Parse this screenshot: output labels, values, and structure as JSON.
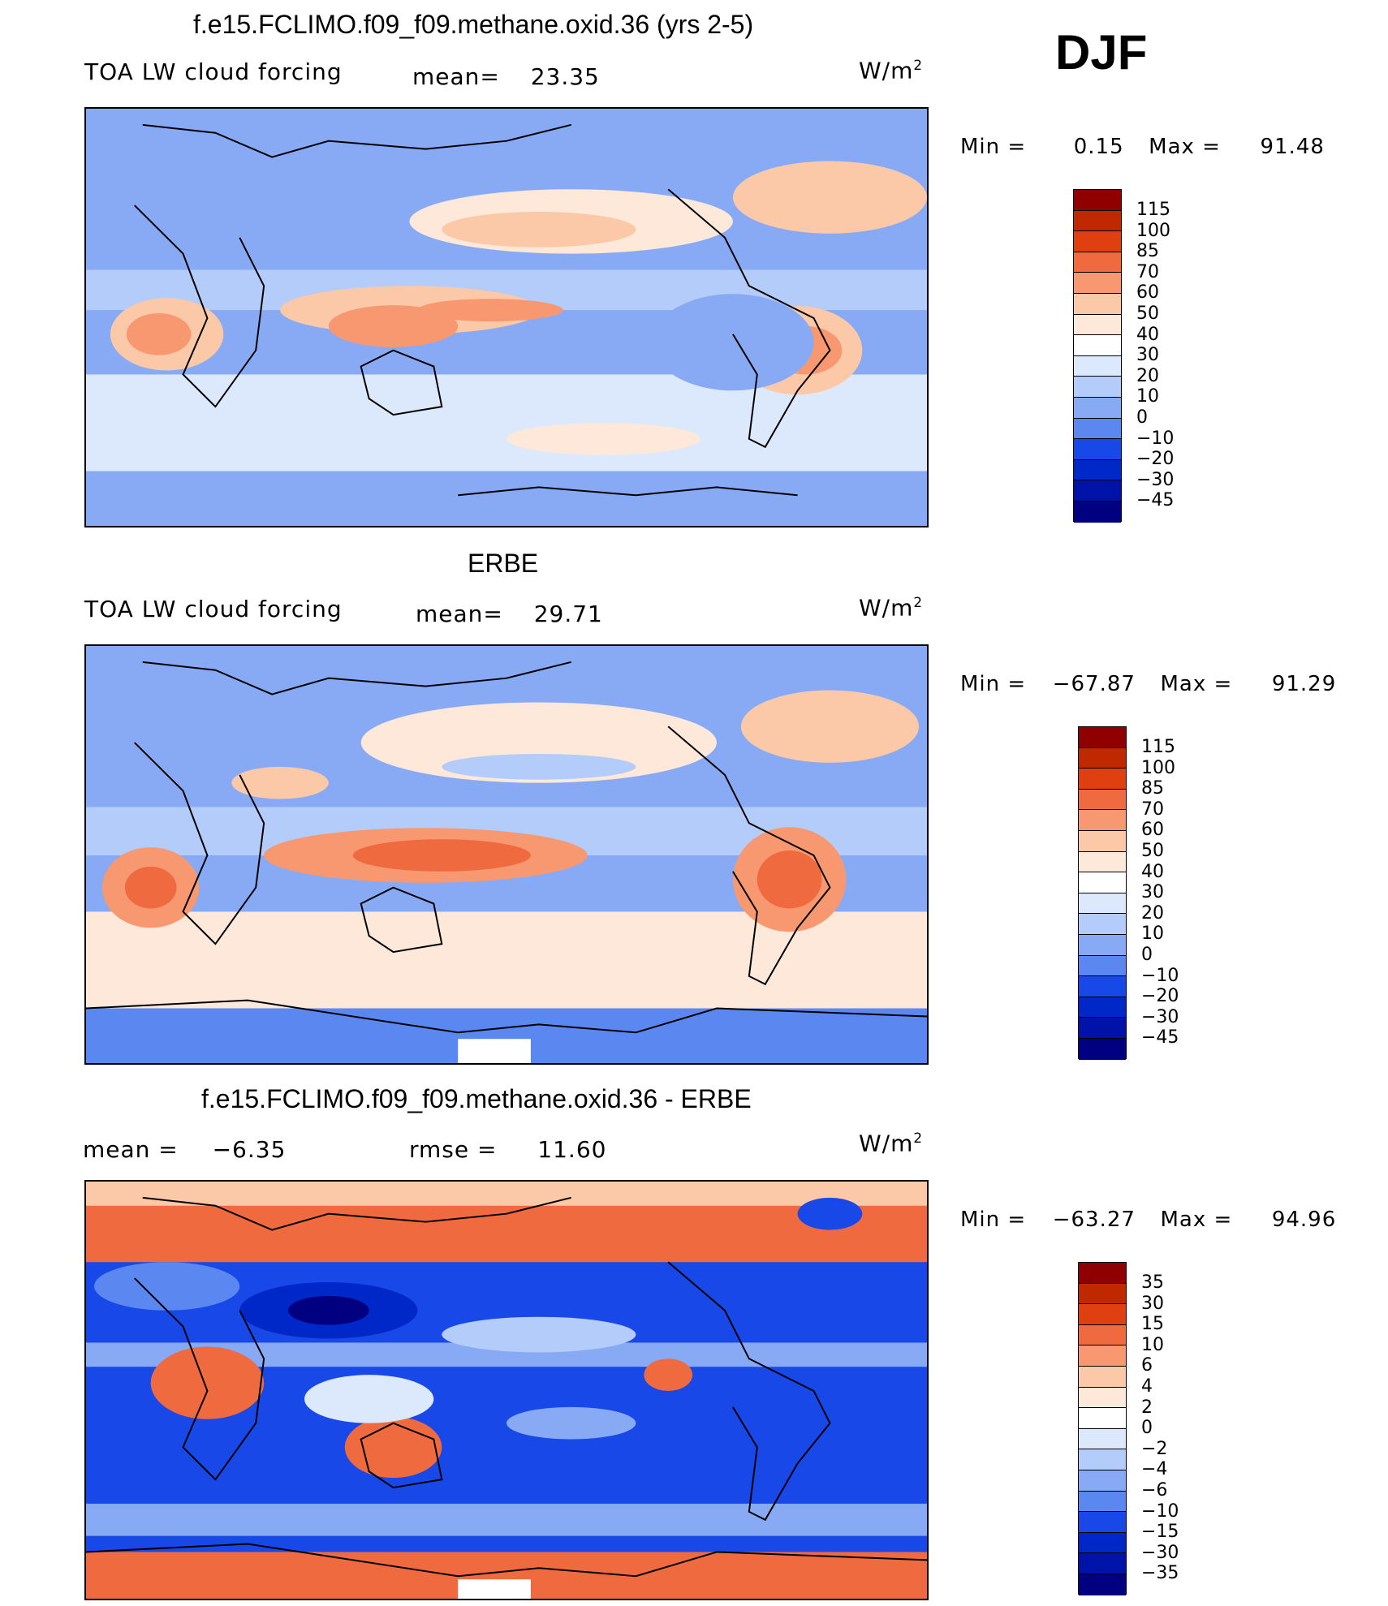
{
  "figure": {
    "season": "DJF",
    "units_base": "W/m",
    "units_exp": "2"
  },
  "panels": [
    {
      "title": "f.e15.FCLIMO.f09_f09.methane.oxid.36 (yrs 2-5)",
      "left_label": "TOA  LW  cloud  forcing",
      "mean_label": "mean=",
      "mean_value": "23.35",
      "min_label": "Min  =",
      "min_value": "0.15",
      "max_label": "Max  =",
      "max_value": "91.48",
      "colorbar_labels": [
        "115",
        "100",
        "85",
        "70",
        "60",
        "50",
        "40",
        "30",
        "20",
        "10",
        "0",
        "−10",
        "−20",
        "−30",
        "−45"
      ]
    },
    {
      "title": "ERBE",
      "left_label": "TOA  LW  cloud  forcing",
      "mean_label": "mean=",
      "mean_value": "29.71",
      "min_label": "Min  =",
      "min_value": "−67.87",
      "max_label": "Max  =",
      "max_value": "91.29",
      "colorbar_labels": [
        "115",
        "100",
        "85",
        "70",
        "60",
        "50",
        "40",
        "30",
        "20",
        "10",
        "0",
        "−10",
        "−20",
        "−30",
        "−45"
      ]
    },
    {
      "title": "f.e15.FCLIMO.f09_f09.methane.oxid.36 - ERBE",
      "mean_label": "mean  =",
      "mean_value": "−6.35",
      "rmse_label": "rmse  =",
      "rmse_value": "11.60",
      "min_label": "Min  =",
      "min_value": "−63.27",
      "max_label": "Max  =",
      "max_value": "94.96",
      "colorbar_labels": [
        "35",
        "30",
        "15",
        "10",
        "6",
        "4",
        "2",
        "0",
        "−2",
        "−4",
        "−6",
        "−10",
        "−15",
        "−30",
        "−35"
      ]
    }
  ],
  "colors": {
    "scale": [
      "#000080",
      "#0013a8",
      "#0028c8",
      "#1848e8",
      "#3468f0",
      "#5a88f0",
      "#88aaf5",
      "#b4ccfa",
      "#dce8fc",
      "#fde8da",
      "#fbc8a8",
      "#f89870",
      "#f06a40",
      "#e04010",
      "#c02800",
      "#900000"
    ]
  }
}
